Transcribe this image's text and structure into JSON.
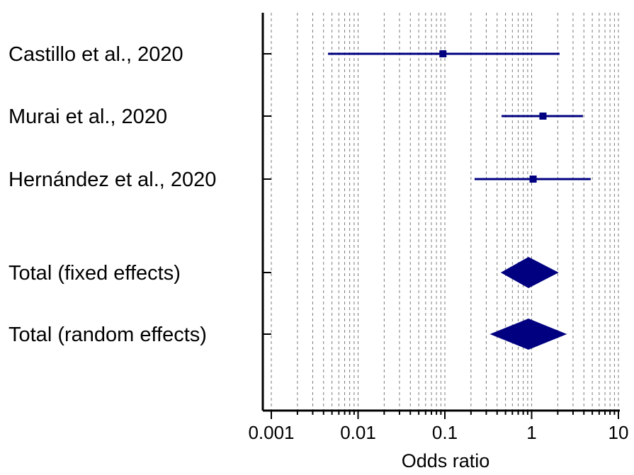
{
  "chart_data": {
    "type": "forest",
    "xlabel": "Odds ratio",
    "x_scale": "log",
    "xlim": [
      0.001,
      10
    ],
    "x_ticks": [
      "0.001",
      "0.01",
      "0.1",
      "1",
      "10"
    ],
    "grid": "vertical dashed minor and major gridlines",
    "studies": [
      {
        "label": "Castillo et al., 2020",
        "or": 0.095,
        "ci_low": 0.0045,
        "ci_high": 2.1
      },
      {
        "label": "Murai et al., 2020",
        "or": 1.35,
        "ci_low": 0.45,
        "ci_high": 3.9
      },
      {
        "label": "Hernández et al., 2020",
        "or": 1.04,
        "ci_low": 0.22,
        "ci_high": 4.8
      }
    ],
    "totals": [
      {
        "label": "Total (fixed effects)",
        "or": 0.92,
        "ci_low": 0.44,
        "ci_high": 2.05
      },
      {
        "label": "Total (random effects)",
        "or": 0.92,
        "ci_low": 0.33,
        "ci_high": 2.55
      }
    ],
    "colors": {
      "marker": "#000080",
      "axis": "#000000",
      "grid": "#7a7a7a"
    }
  }
}
